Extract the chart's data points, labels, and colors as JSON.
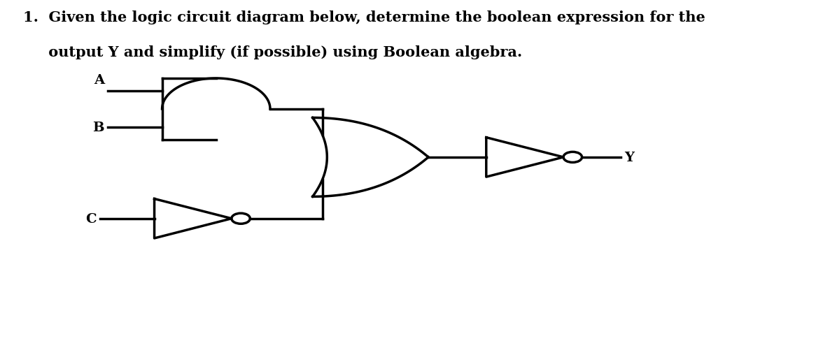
{
  "title_line1": "1.  Given the logic circuit diagram below, determine the boolean expression for the",
  "title_line2": "     output Y and simplify (if possible) using Boolean algebra.",
  "title_fontsize": 15,
  "title_font": "serif",
  "bg_color": "#ffffff",
  "line_color": "#000000",
  "line_width": 2.5,
  "label_A": "A",
  "label_B": "B",
  "label_C": "C",
  "label_Y": "Y"
}
